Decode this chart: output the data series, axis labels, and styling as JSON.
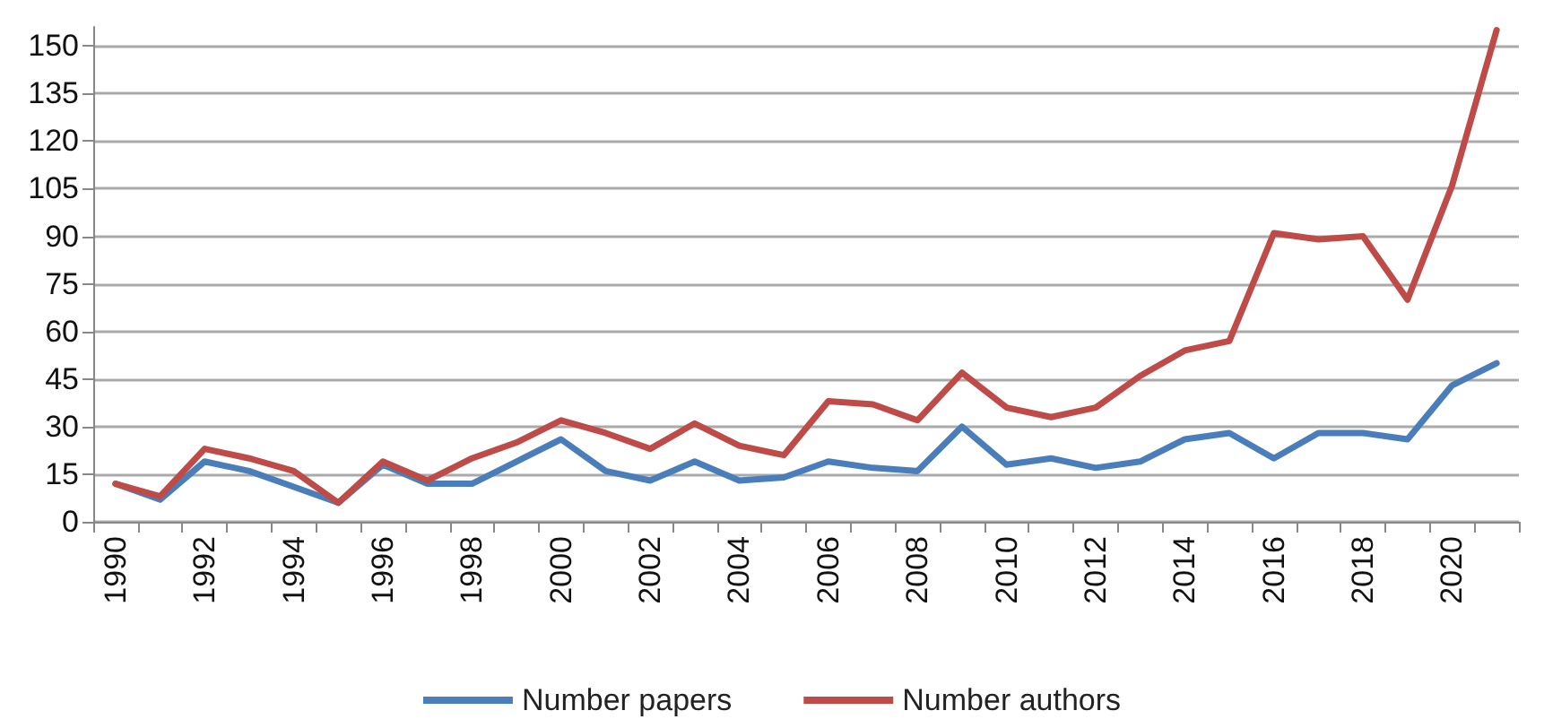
{
  "chart_data": {
    "type": "line",
    "categories": [
      "1990",
      null,
      "1992",
      null,
      "1994",
      null,
      "1996",
      null,
      "1998",
      null,
      "2000",
      null,
      "2002",
      null,
      "2004",
      null,
      "2006",
      null,
      "2008",
      null,
      "2010",
      null,
      "2012",
      null,
      "2014",
      null,
      "2016",
      null,
      "2018",
      null,
      "2020",
      null
    ],
    "series": [
      {
        "name": "Number papers",
        "color": "#4a7ebb",
        "values": [
          12,
          7,
          19,
          16,
          11,
          6,
          18,
          12,
          12,
          19,
          26,
          16,
          13,
          19,
          13,
          14,
          19,
          17,
          16,
          30,
          18,
          20,
          17,
          19,
          26,
          28,
          20,
          28,
          28,
          26,
          43,
          50
        ]
      },
      {
        "name": "Number authors",
        "color": "#be4b48",
        "values": [
          12,
          8,
          23,
          20,
          16,
          6,
          19,
          13,
          20,
          25,
          32,
          28,
          23,
          31,
          24,
          21,
          38,
          37,
          32,
          47,
          36,
          33,
          36,
          46,
          54,
          57,
          91,
          89,
          90,
          70,
          106,
          155
        ]
      }
    ],
    "ylim": [
      0,
      156
    ],
    "yticks": [
      0,
      15,
      30,
      45,
      60,
      75,
      90,
      105,
      120,
      135,
      150
    ],
    "grid": "y",
    "legend": "bottom",
    "marker": "none",
    "line_style": "solid"
  }
}
